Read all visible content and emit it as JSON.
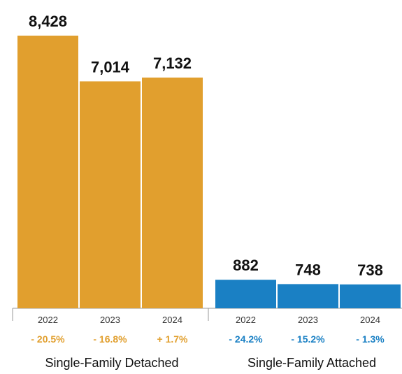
{
  "chart_data": {
    "type": "bar",
    "title": "",
    "xlabel": "",
    "ylabel": "",
    "ylim": [
      0,
      8600
    ],
    "grid": false,
    "groups": [
      {
        "label": "Single-Family Detached",
        "color": "#E19F2E",
        "bars": [
          {
            "year": "2022",
            "value": 8428,
            "value_label": "8,428",
            "change": "- 20.5%"
          },
          {
            "year": "2023",
            "value": 7014,
            "value_label": "7,014",
            "change": "- 16.8%"
          },
          {
            "year": "2024",
            "value": 7132,
            "value_label": "7,132",
            "change": "+ 1.7%"
          }
        ]
      },
      {
        "label": "Single-Family Attached",
        "color": "#1A80C4",
        "bars": [
          {
            "year": "2022",
            "value": 882,
            "value_label": "882",
            "change": "- 24.2%"
          },
          {
            "year": "2023",
            "value": 748,
            "value_label": "748",
            "change": "- 15.2%"
          },
          {
            "year": "2024",
            "value": 738,
            "value_label": "738",
            "change": "- 1.3%"
          }
        ]
      }
    ]
  }
}
